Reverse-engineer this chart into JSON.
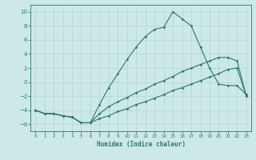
{
  "xlabel": "Humidex (Indice chaleur)",
  "xlim": [
    -0.5,
    23.5
  ],
  "ylim": [
    -7,
    11
  ],
  "xticks": [
    0,
    1,
    2,
    3,
    4,
    5,
    6,
    7,
    8,
    9,
    10,
    11,
    12,
    13,
    14,
    15,
    16,
    17,
    18,
    19,
    20,
    21,
    22,
    23
  ],
  "yticks": [
    -6,
    -4,
    -2,
    0,
    2,
    4,
    6,
    8,
    10
  ],
  "bg_color": "#cce8e8",
  "line_color": "#2a7a6a",
  "line1_x": [
    0,
    1,
    2,
    3,
    4,
    5,
    6,
    7,
    8,
    9,
    10,
    11,
    12,
    13,
    14,
    15,
    16,
    17,
    18,
    19,
    20,
    21,
    22,
    23
  ],
  "line1_y": [
    -4,
    -4.5,
    -4.5,
    -4.8,
    -5,
    -5.8,
    -5.8,
    -5.2,
    -4.8,
    -4.2,
    -3.8,
    -3.2,
    -2.8,
    -2.3,
    -1.8,
    -1.2,
    -0.8,
    -0.3,
    0.2,
    0.7,
    1.2,
    1.8,
    2.0,
    -2.0
  ],
  "line2_x": [
    0,
    1,
    2,
    3,
    4,
    5,
    6,
    7,
    8,
    9,
    10,
    11,
    12,
    13,
    14,
    15,
    16,
    17,
    18,
    19,
    20,
    21,
    22,
    23
  ],
  "line2_y": [
    -4,
    -4.5,
    -4.5,
    -4.8,
    -5,
    -5.8,
    -5.8,
    -3.2,
    -0.8,
    1.2,
    3.2,
    5.0,
    6.5,
    7.5,
    7.8,
    10.0,
    9.0,
    8.0,
    5.0,
    2.0,
    -0.3,
    -0.5,
    -0.5,
    -1.8
  ],
  "line3_x": [
    0,
    1,
    2,
    3,
    4,
    5,
    6,
    7,
    8,
    9,
    10,
    11,
    12,
    13,
    14,
    15,
    16,
    17,
    18,
    19,
    20,
    21,
    22,
    23
  ],
  "line3_y": [
    -4,
    -4.5,
    -4.5,
    -4.8,
    -5,
    -5.8,
    -5.8,
    -4.5,
    -3.5,
    -2.8,
    -2.2,
    -1.5,
    -1.0,
    -0.3,
    0.2,
    0.8,
    1.5,
    2.0,
    2.5,
    3.0,
    3.5,
    3.5,
    3.0,
    -2.0
  ]
}
